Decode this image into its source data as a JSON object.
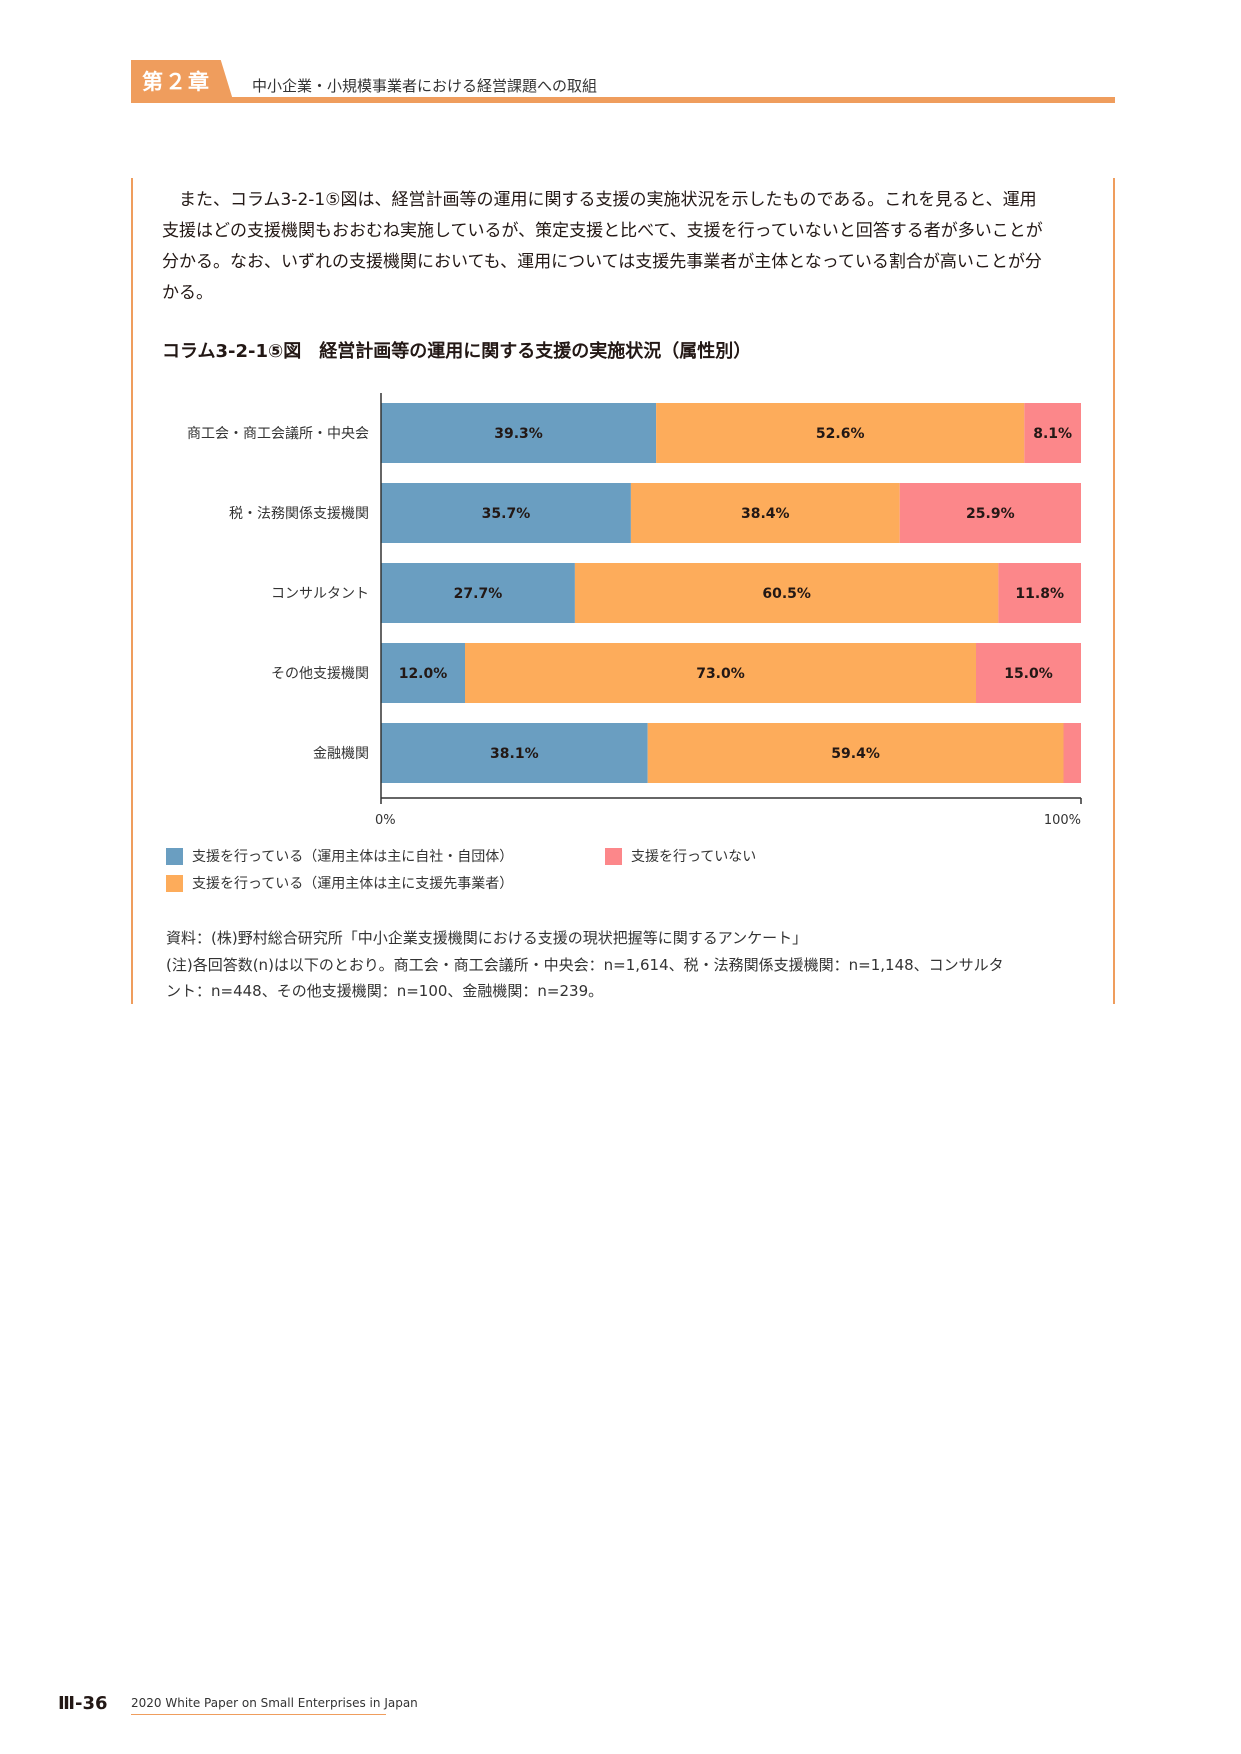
{
  "header": {
    "chapter": "第２章",
    "title": "中小企業・小規模事業者における経営課題への取組"
  },
  "body": {
    "lines": [
      "　また、コラム3-2-1⑤図は、経営計画等の運用に関する支援の実施状況を示したものである。これを見ると、運用",
      "支援はどの支援機関もおおむね実施しているが、策定支援と比べて、支援を行っていないと回答する者が多いことが",
      "分かる。なお、いずれの支援機関においても、運用については支援先事業者が主体となっている割合が高いことが分",
      "かる。"
    ]
  },
  "figure": {
    "title": "コラム3-2-1⑤図　経営計画等の運用に関する支援の実施状況（属性別）"
  },
  "chart_data": {
    "type": "bar",
    "orientation": "horizontal",
    "stacked": true,
    "categories": [
      "商工会・商工会議所・中央会",
      "税・法務関係支援機関",
      "コンサルタント",
      "その他支援機関",
      "金融機関"
    ],
    "series": [
      {
        "name": "支援を行っている（運用主体は主に自社・自団体）",
        "color": "#6a9ec1",
        "values": [
          39.3,
          35.7,
          27.7,
          12.0,
          38.1
        ]
      },
      {
        "name": "支援を行っている（運用主体は主に支援先事業者）",
        "color": "#fdac5b",
        "values": [
          52.6,
          38.4,
          60.5,
          73.0,
          59.4
        ]
      },
      {
        "name": "支援を行っていない",
        "color": "#fc878a",
        "values": [
          8.1,
          25.9,
          11.8,
          15.0,
          2.5
        ]
      }
    ],
    "data_labels": [
      [
        "39.3%",
        "35.7%",
        "27.7%",
        "12.0%",
        "38.1%"
      ],
      [
        "52.6%",
        "38.4%",
        "60.5%",
        "73.0%",
        "59.4%"
      ],
      [
        "8.1%",
        "25.9%",
        "11.8%",
        "15.0%",
        ""
      ]
    ],
    "xlim": [
      0,
      100
    ],
    "x_tick_labels": [
      "0%",
      "100%"
    ],
    "legend_position": "bottom"
  },
  "notes": {
    "source": "資料：(株)野村総合研究所「中小企業支援機関における支援の現状把握等に関するアンケート」",
    "note_line1": "(注)各回答数(n)は以下のとおり。商工会・商工会議所・中央会：n=1,614、税・法務関係支援機関：n=1,148、コンサルタ",
    "note_line2": "ント：n=448、その他支援機関：n=100、金融機関：n=239。"
  },
  "footer": {
    "page": "Ⅲ-36",
    "publication": "2020 White Paper on Small Enterprises in Japan"
  }
}
